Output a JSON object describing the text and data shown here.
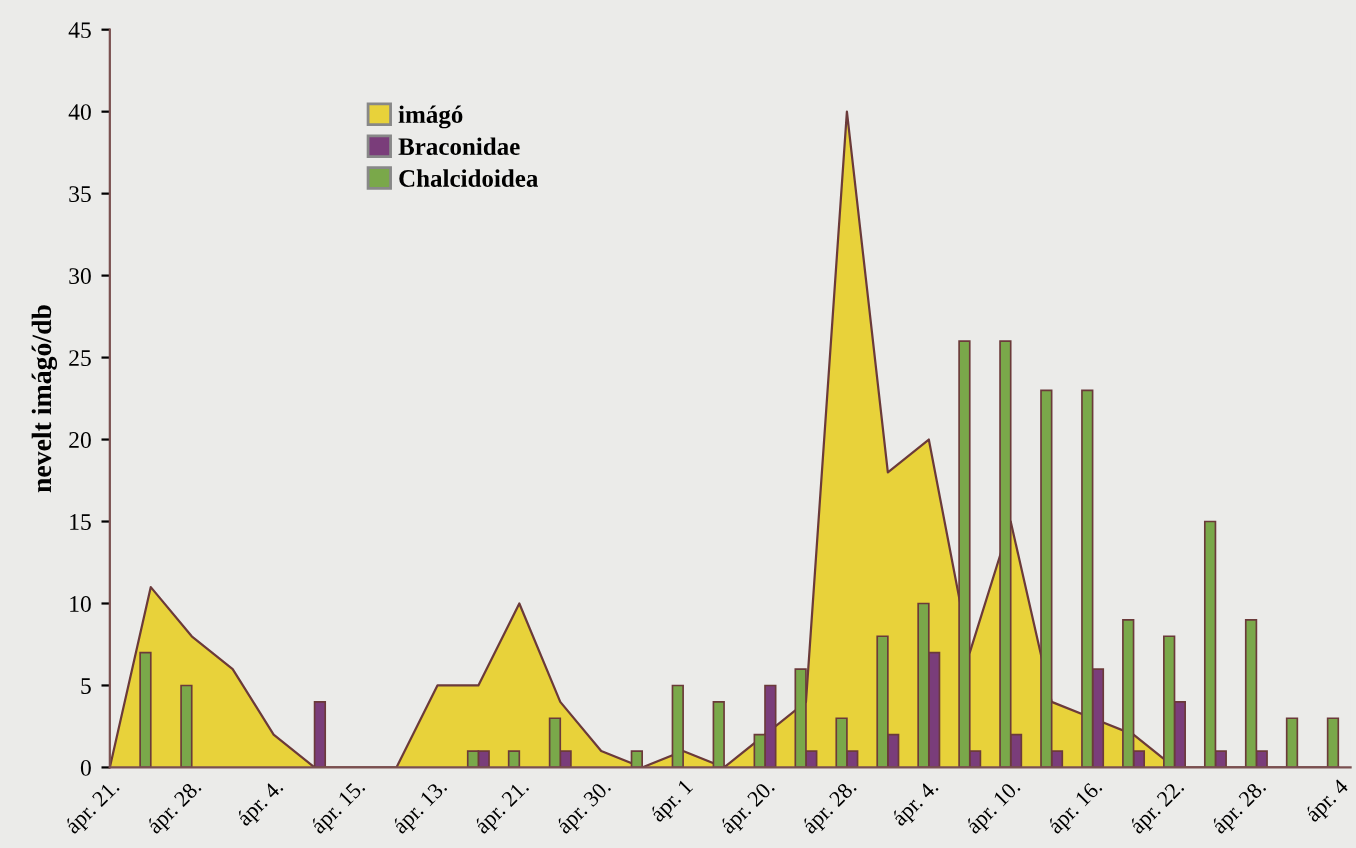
{
  "chart_data": {
    "type": "bar",
    "ylabel": "nevelt imágó/db",
    "categories": [
      "ápr. 21.",
      null,
      "ápr. 28.",
      null,
      "ápr. 4.",
      null,
      "ápr. 15.",
      null,
      "ápr. 13.",
      null,
      "ápr. 21.",
      null,
      "ápr. 30.",
      null,
      "ápr. 1",
      null,
      "ápr. 20.",
      null,
      "ápr. 28.",
      null,
      "ápr. 4.",
      null,
      "ápr. 10.",
      null,
      "ápr. 16.",
      null,
      "ápr. 22.",
      null,
      "ápr. 28.",
      null,
      "ápr. 4"
    ],
    "series": [
      {
        "name": "imágó",
        "type": "area",
        "color": "#e8d23a",
        "values": [
          0,
          11,
          8,
          6,
          2,
          0,
          0,
          0,
          5,
          5,
          10,
          4,
          1,
          0,
          1,
          0,
          2,
          4,
          40,
          18,
          20,
          7,
          15,
          4,
          3,
          2,
          0,
          0,
          0,
          0,
          0
        ]
      },
      {
        "name": "Braconidae",
        "color": "#7a3d7a",
        "values": [
          null,
          null,
          null,
          null,
          null,
          4,
          null,
          null,
          null,
          1,
          null,
          1,
          null,
          null,
          null,
          null,
          5,
          1,
          1,
          2,
          7,
          1,
          2,
          1,
          6,
          1,
          4,
          1,
          1,
          null,
          null
        ]
      },
      {
        "name": "Chalcidoidea",
        "color": "#7aa84a",
        "values": [
          null,
          7,
          5,
          null,
          null,
          null,
          null,
          null,
          null,
          1,
          1,
          3,
          null,
          1,
          5,
          4,
          2,
          6,
          3,
          8,
          10,
          26,
          26,
          23,
          23,
          9,
          8,
          15,
          9,
          3,
          3
        ]
      }
    ],
    "ylim": [
      0,
      45
    ],
    "yticks": [
      0,
      5,
      10,
      15,
      20,
      25,
      30,
      35,
      40,
      45
    ],
    "grid": false,
    "legend": "top"
  }
}
